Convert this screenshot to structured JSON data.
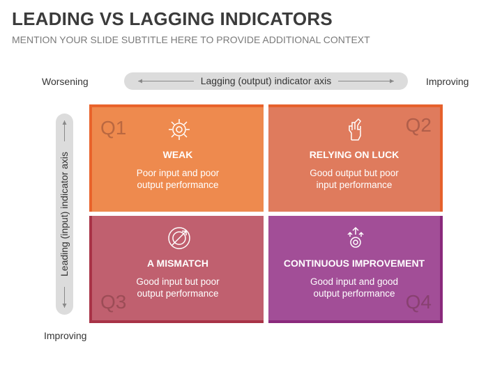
{
  "header": {
    "title": "LEADING VS LAGGING INDICATORS",
    "subtitle": "MENTION YOUR SLIDE SUBTITLE HERE TO PROVIDE ADDITIONAL CONTEXT"
  },
  "axes": {
    "x": {
      "label": "Lagging (output) indicator axis",
      "left": "Worsening",
      "right": "Improving"
    },
    "y": {
      "label": "Leading (input) indicator axis",
      "bottom": "Improving"
    }
  },
  "quadrants": [
    {
      "id": "Q1",
      "title": "WEAK",
      "text": [
        "Poor input and poor",
        "output performance"
      ]
    },
    {
      "id": "Q2",
      "title": "RELYING ON LUCK",
      "text": [
        "Good output but poor",
        "input performance"
      ]
    },
    {
      "id": "Q3",
      "title": "A MISMATCH",
      "text": [
        "Good input but poor",
        "output performance"
      ]
    },
    {
      "id": "Q4",
      "title": "CONTINUOUS IMPROVEMENT",
      "text": [
        "Good input and good",
        "output performance"
      ]
    }
  ]
}
